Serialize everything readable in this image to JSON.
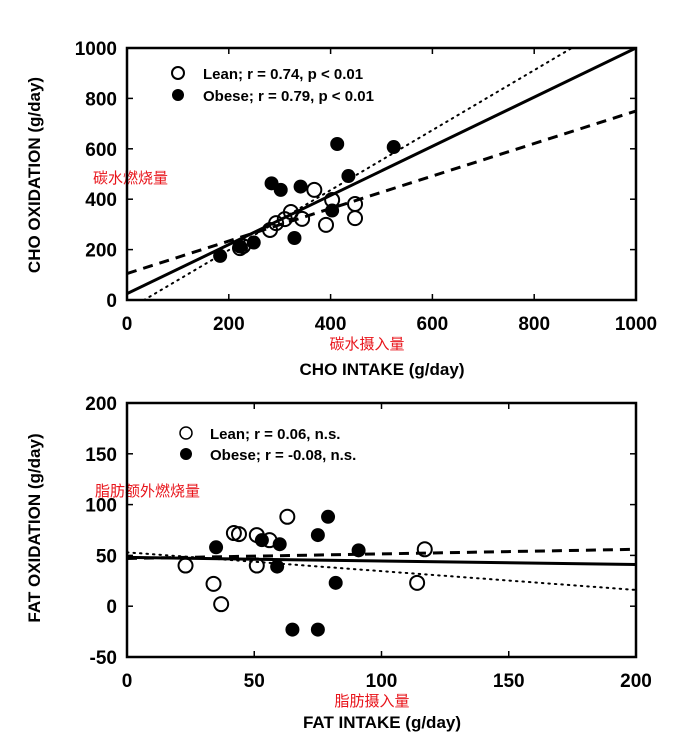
{
  "chart_data": [
    {
      "type": "scatter",
      "title": "",
      "xlabel": "CHO INTAKE (g/day)",
      "ylabel": "CHO OXIDATION (g/day)",
      "xlabel_annotation": "碳水摄入量",
      "ylabel_annotation": "碳水燃烧量",
      "xlim": [
        0,
        1000
      ],
      "ylim": [
        0,
        1000
      ],
      "xticks": [
        0,
        200,
        400,
        600,
        800,
        1000
      ],
      "yticks": [
        0,
        200,
        400,
        600,
        800,
        1000
      ],
      "xtick_labels": [
        "0",
        "200",
        "400",
        "600",
        "800",
        "1000"
      ],
      "ytick_labels": [
        "0",
        "200",
        "400",
        "600",
        "800",
        "1000"
      ],
      "grid": false,
      "legend_position": "top-left",
      "series": [
        {
          "name": "Lean",
          "legend_label": "Lean; r = 0.74, p < 0.01",
          "marker": "open-circle",
          "points": [
            [
              222,
              206
            ],
            [
              228,
              214
            ],
            [
              281,
              278
            ],
            [
              310,
              321
            ],
            [
              322,
              349
            ],
            [
              344,
              322
            ],
            [
              368,
              437
            ],
            [
              403,
              397
            ],
            [
              391,
              298
            ],
            [
              448,
              381
            ],
            [
              448,
              325
            ],
            [
              293,
              305
            ]
          ],
          "fit_line": {
            "style": "dotted",
            "x": [
              0,
              1000
            ],
            "y": [
              -40,
              1150
            ]
          }
        },
        {
          "name": "Obese",
          "legend_label": "Obese; r = 0.79, p < 0.01",
          "marker": "filled-circle",
          "points": [
            [
              183,
              175
            ],
            [
              249,
              228
            ],
            [
              284,
              463
            ],
            [
              302,
              437
            ],
            [
              341,
              450
            ],
            [
              329,
              246
            ],
            [
              413,
              619
            ],
            [
              435,
              492
            ],
            [
              403,
              355
            ],
            [
              524,
              607
            ],
            [
              222,
              212
            ]
          ],
          "fit_line": {
            "style": "dashed",
            "x": [
              0,
              1000
            ],
            "y": [
              105,
              750
            ]
          }
        },
        {
          "name": "Combined",
          "legend_label": "",
          "marker": "none",
          "points": [],
          "fit_line": {
            "style": "solid",
            "x": [
              0,
              1000
            ],
            "y": [
              25,
              1000
            ]
          }
        }
      ]
    },
    {
      "type": "scatter",
      "title": "",
      "xlabel": "FAT INTAKE (g/day)",
      "ylabel": "FAT OXIDATION (g/day)",
      "xlabel_annotation": "脂肪摄入量",
      "ylabel_annotation": "脂肪额外燃烧量",
      "xlim": [
        0,
        200
      ],
      "ylim": [
        -50,
        200
      ],
      "xticks": [
        0,
        50,
        100,
        150,
        200
      ],
      "yticks": [
        -50,
        0,
        50,
        100,
        150,
        200
      ],
      "xtick_labels": [
        "0",
        "50",
        "100",
        "150",
        "200"
      ],
      "ytick_labels": [
        "-50",
        "0",
        "50",
        "100",
        "150",
        "200"
      ],
      "grid": false,
      "legend_position": "top-left",
      "series": [
        {
          "name": "Lean",
          "legend_label": "Lean; r = 0.06, n.s.",
          "marker": "open-circle",
          "points": [
            [
              23,
              40
            ],
            [
              34,
              22
            ],
            [
              37,
              2
            ],
            [
              42,
              72
            ],
            [
              44,
              71
            ],
            [
              51,
              70
            ],
            [
              51,
              40
            ],
            [
              56,
              65
            ],
            [
              63,
              88
            ],
            [
              114,
              23
            ],
            [
              117,
              56
            ]
          ],
          "fit_line": {
            "style": "dashed",
            "x": [
              0,
              200
            ],
            "y": [
              47,
              56
            ]
          }
        },
        {
          "name": "Obese",
          "legend_label": "Obese; r = -0.08, n.s.",
          "marker": "filled-circle",
          "points": [
            [
              35,
              58
            ],
            [
              53,
              65
            ],
            [
              59,
              39
            ],
            [
              60,
              61
            ],
            [
              65,
              -23
            ],
            [
              75,
              -23
            ],
            [
              75,
              70
            ],
            [
              79,
              88
            ],
            [
              82,
              23
            ],
            [
              91,
              55
            ]
          ],
          "fit_line": {
            "style": "dotted",
            "x": [
              0,
              200
            ],
            "y": [
              53,
              16
            ]
          }
        },
        {
          "name": "Combined",
          "legend_label": "",
          "marker": "none",
          "points": [],
          "fit_line": {
            "style": "solid",
            "x": [
              0,
              200
            ],
            "y": [
              48,
              41
            ]
          }
        }
      ]
    }
  ]
}
